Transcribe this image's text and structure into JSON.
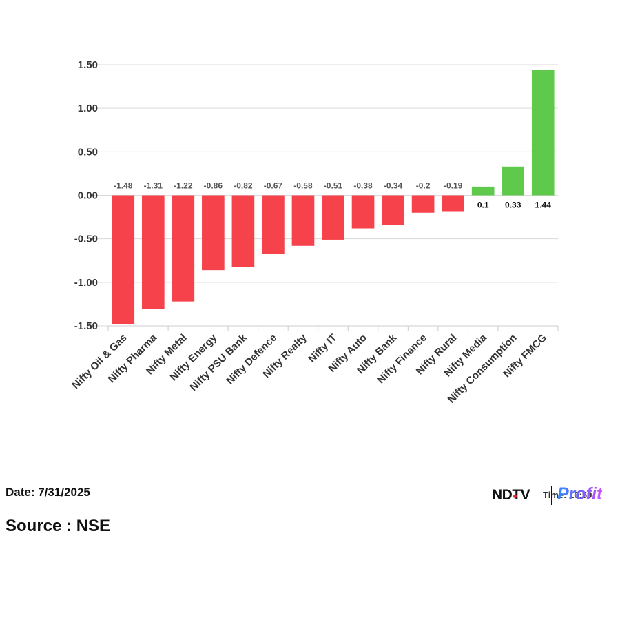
{
  "chart_data": {
    "type": "bar",
    "categories": [
      "Nifty Oil & Gas",
      "Nifty Pharma",
      "Nifty Metal",
      "Nifty Energy",
      "Nifty PSU Bank",
      "Nifty Defence",
      "Nifty Realty",
      "Nifty IT",
      "Nifty Auto",
      "Nifty Bank",
      "Nifty Finance",
      "Nifty Rural",
      "Nifty Media",
      "Nifty Consumption",
      "Nifty FMCG"
    ],
    "values": [
      -1.48,
      -1.31,
      -1.22,
      -0.86,
      -0.82,
      -0.67,
      -0.58,
      -0.51,
      -0.38,
      -0.34,
      -0.2,
      -0.19,
      0.1,
      0.33,
      1.44
    ],
    "value_labels": [
      "-1.48",
      "-1.31",
      "-1.22",
      "-0.86",
      "-0.82",
      "-0.67",
      "-0.58",
      "-0.51",
      "-0.38",
      "-0.34",
      "-0.2",
      "-0.19",
      "0.1",
      "0.33",
      "1.44"
    ],
    "y_ticks": [
      "1.50",
      "1.00",
      "0.50",
      "0.00",
      "-0.50",
      "-1.00",
      "-1.50"
    ],
    "ylim": [
      -1.5,
      1.5
    ],
    "grid": true,
    "colors": {
      "negative": "#f5424b",
      "positive": "#5ec94a",
      "negative_label": "#555555",
      "positive_label": "#111111"
    }
  },
  "footer": {
    "date": "Date: 7/31/2025",
    "source": "Source : NSE"
  },
  "logo": {
    "ndtv": "NDTV",
    "profit": "Profit",
    "time_fragment": "Time: 16:59"
  }
}
